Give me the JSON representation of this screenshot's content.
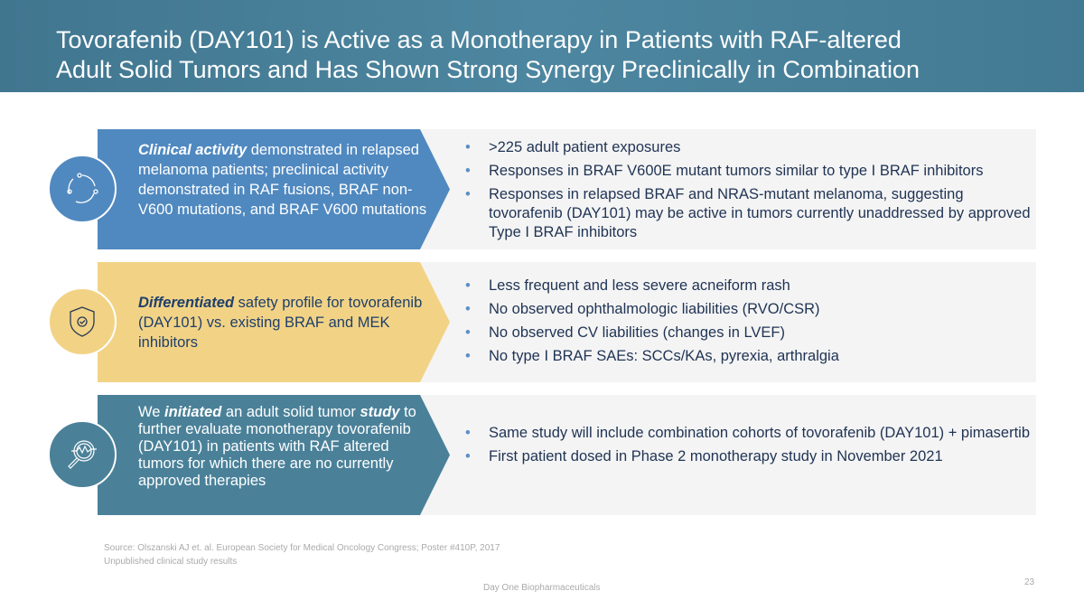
{
  "title": {
    "line1": "Tovorafenib (DAY101) is Active as a Monotherapy in Patients with RAF-altered",
    "line2": "Adult Solid Tumors and Has Shown Strong Synergy Preclinically in Combination"
  },
  "rows": [
    {
      "lead_em": "Clinical activity",
      "lead_rest": " demonstrated in relapsed melanoma patients; preclinical activity demonstrated in RAF fusions, BRAF non-V600 mutations, and BRAF V600 mutations",
      "bullets": [
        ">225 adult patient exposures",
        "Responses in BRAF V600E mutant tumors similar to type I BRAF inhibitors",
        "Responses in relapsed BRAF and NRAS-mutant melanoma, suggesting tovorafenib (DAY101) may be active in tumors currently unaddressed by approved Type I BRAF inhibitors"
      ]
    },
    {
      "lead_em": "Differentiated",
      "lead_rest": " safety profile for tovorafenib (DAY101) vs. existing BRAF and MEK inhibitors",
      "bullets": [
        "Less frequent and less severe acneiform rash",
        "No observed ophthalmologic liabilities (RVO/CSR)",
        "No observed CV liabilities (changes in LVEF)",
        "No type I BRAF SAEs: SCCs/KAs, pyrexia, arthralgia"
      ]
    },
    {
      "p1": "We ",
      "em1": "initiated",
      "p2": " an adult solid tumor ",
      "em2": "study",
      "p3": " to further evaluate monotherapy tovorafenib (DAY101) in patients with RAF altered tumors for which there are no currently approved therapies",
      "bullets": [
        "Same study will include combination cohorts of tovorafenib (DAY101) + pimasertib",
        "First patient dosed in Phase 2 monotherapy study in November 2021"
      ]
    }
  ],
  "footer": {
    "source": "Source:  Olszanski AJ et. al.  European Society for Medical Oncology Congress; Poster #410P, 2017",
    "note": "Unpublished clinical study results",
    "company": "Day One Biopharmaceuticals",
    "page": "23"
  }
}
